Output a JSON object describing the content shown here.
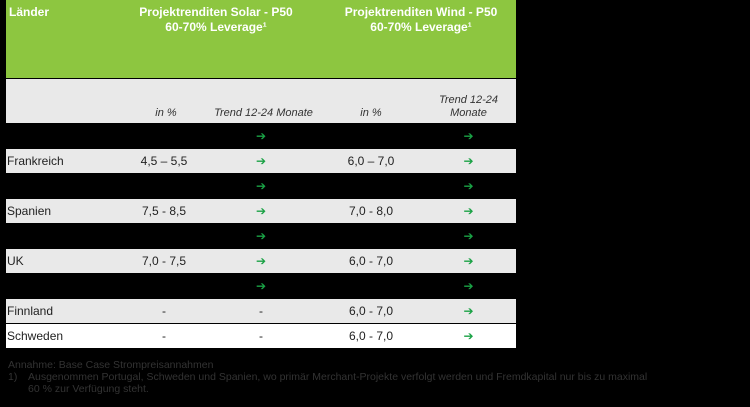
{
  "header": {
    "countries": "Länder",
    "solar_line1": "Projektrenditen Solar - P50",
    "solar_line2": "60-70% Leverage¹",
    "wind_line1": "Projektrenditen Wind - P50",
    "wind_line2": "60-70% Leverage¹"
  },
  "subheader": {
    "solar_pct": "in %",
    "solar_trend": "Trend 12-24 Monate",
    "wind_pct": "in %",
    "wind_trend_line1": "Trend 12-24",
    "wind_trend_line2": "Monate"
  },
  "rows": [
    {
      "style": "black",
      "country": "",
      "solar": "",
      "solar_trend": "➔",
      "wind": "",
      "wind_trend": "➔"
    },
    {
      "style": "grey",
      "country": "Frankreich",
      "solar": "4,5 – 5,5",
      "solar_trend": "➔",
      "wind": "6,0 – 7,0",
      "wind_trend": "➔"
    },
    {
      "style": "black",
      "country": "",
      "solar": "",
      "solar_trend": "➔",
      "wind": "",
      "wind_trend": "➔"
    },
    {
      "style": "grey",
      "country": "Spanien",
      "solar": "7,5 - 8,5",
      "solar_trend": "➔",
      "wind": "7,0 - 8,0",
      "wind_trend": "➔"
    },
    {
      "style": "black",
      "country": "",
      "solar": "",
      "solar_trend": "➔",
      "wind": "",
      "wind_trend": "➔"
    },
    {
      "style": "grey",
      "country": "UK",
      "solar": "7,0 - 7,5",
      "solar_trend": "➔",
      "wind": "6,0 - 7,0",
      "wind_trend": "➔"
    },
    {
      "style": "black",
      "country": "",
      "solar": "",
      "solar_trend": "➔",
      "wind": "",
      "wind_trend": "➔"
    },
    {
      "style": "grey",
      "country": "Finnland",
      "solar": "-",
      "solar_trend": "-",
      "wind": "6,0 - 7,0",
      "wind_trend": "➔"
    },
    {
      "style": "white",
      "country": "Schweden",
      "solar": "-",
      "solar_trend": "-",
      "wind": "6,0 - 7,0",
      "wind_trend": "➔"
    }
  ],
  "colors": {
    "header_green": "#8dc640",
    "row_grey": "#e9e9e9",
    "arrow_green": "#1aa245"
  },
  "footnotes": {
    "assumption": "Annahme: Base Case Strompreisannahmen",
    "note_number": "1)",
    "note_line1": "Ausgenommen Portugal, Schweden und Spanien, wo primär Merchant-Projekte verfolgt werden und Fremdkapital nur bis zu maximal",
    "note_line2": "60 % zur Verfügung steht."
  }
}
